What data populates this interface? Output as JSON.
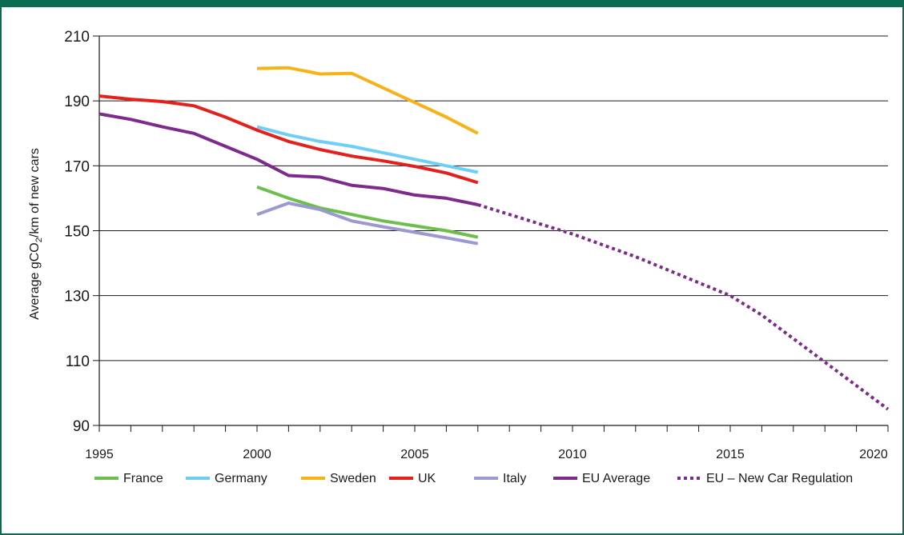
{
  "chart_data": {
    "type": "line",
    "title": "",
    "xlabel": "",
    "ylabel": {
      "prefix": "Average gCO",
      "subscript": "2",
      "suffix": "/km of new cars"
    },
    "xlim": [
      1995,
      2020
    ],
    "ylim": [
      90,
      210
    ],
    "x_ticks": [
      1995,
      2000,
      2005,
      2010,
      2015,
      2020
    ],
    "x_tick_labels": [
      "1995",
      "2000",
      "2005",
      "2010",
      "2015",
      "2020"
    ],
    "y_ticks": [
      90,
      110,
      130,
      150,
      170,
      190,
      210
    ],
    "y_tick_labels": [
      "90",
      "110",
      "130",
      "150",
      "170",
      "190",
      "210"
    ],
    "grid": "horizontal",
    "legend_position": "bottom",
    "series": [
      {
        "name": "France",
        "color": "#6cbf4a",
        "style": "solid",
        "points": [
          [
            2000,
            163.5
          ],
          [
            2001,
            160
          ],
          [
            2002,
            157
          ],
          [
            2003,
            155
          ],
          [
            2004,
            153
          ],
          [
            2005,
            151.5
          ],
          [
            2006,
            150
          ],
          [
            2007,
            148
          ]
        ]
      },
      {
        "name": "Germany",
        "color": "#6ecff6",
        "style": "solid",
        "points": [
          [
            2000,
            182
          ],
          [
            2001,
            179.5
          ],
          [
            2002,
            177.5
          ],
          [
            2003,
            176
          ],
          [
            2004,
            174
          ],
          [
            2005,
            172
          ],
          [
            2006,
            170
          ],
          [
            2007,
            168
          ]
        ]
      },
      {
        "name": "Sweden",
        "color": "#f7b218",
        "style": "solid",
        "points": [
          [
            2000,
            200
          ],
          [
            2001,
            200.2
          ],
          [
            2002,
            198.3
          ],
          [
            2003,
            198.5
          ],
          [
            2004,
            194
          ],
          [
            2005,
            189.5
          ],
          [
            2006,
            185
          ],
          [
            2007,
            180
          ]
        ]
      },
      {
        "name": "UK",
        "color": "#e3201b",
        "style": "solid",
        "points": [
          [
            1995,
            191.5
          ],
          [
            1996,
            190.5
          ],
          [
            1997,
            189.8
          ],
          [
            1998,
            188.5
          ],
          [
            1999,
            185
          ],
          [
            2000,
            181
          ],
          [
            2001,
            177.5
          ],
          [
            2002,
            175
          ],
          [
            2003,
            173
          ],
          [
            2004,
            171.5
          ],
          [
            2005,
            169.8
          ],
          [
            2006,
            167.8
          ],
          [
            2007,
            164.8
          ]
        ]
      },
      {
        "name": "Italy",
        "color": "#9a9ad1",
        "style": "solid",
        "points": [
          [
            2000,
            155
          ],
          [
            2001,
            158.5
          ],
          [
            2002,
            156.5
          ],
          [
            2003,
            153
          ],
          [
            2004,
            151.2
          ],
          [
            2005,
            149.5
          ],
          [
            2006,
            147.8
          ],
          [
            2007,
            146
          ]
        ]
      },
      {
        "name": "EU Average",
        "color": "#7d2a8c",
        "style": "solid",
        "points": [
          [
            1995,
            186
          ],
          [
            1996,
            184.3
          ],
          [
            1997,
            182
          ],
          [
            1998,
            180
          ],
          [
            1999,
            176
          ],
          [
            2000,
            172
          ],
          [
            2001,
            167
          ],
          [
            2002,
            166.5
          ],
          [
            2003,
            164
          ],
          [
            2004,
            163
          ],
          [
            2005,
            161
          ],
          [
            2006,
            160
          ],
          [
            2007,
            158
          ]
        ]
      },
      {
        "name": "EU – New Car Regulation",
        "color": "#7d2a8c",
        "style": "dotted",
        "points": [
          [
            2007,
            158
          ],
          [
            2010,
            149
          ],
          [
            2012,
            142
          ],
          [
            2015,
            130
          ],
          [
            2016,
            124
          ],
          [
            2020,
            95
          ]
        ]
      }
    ]
  }
}
